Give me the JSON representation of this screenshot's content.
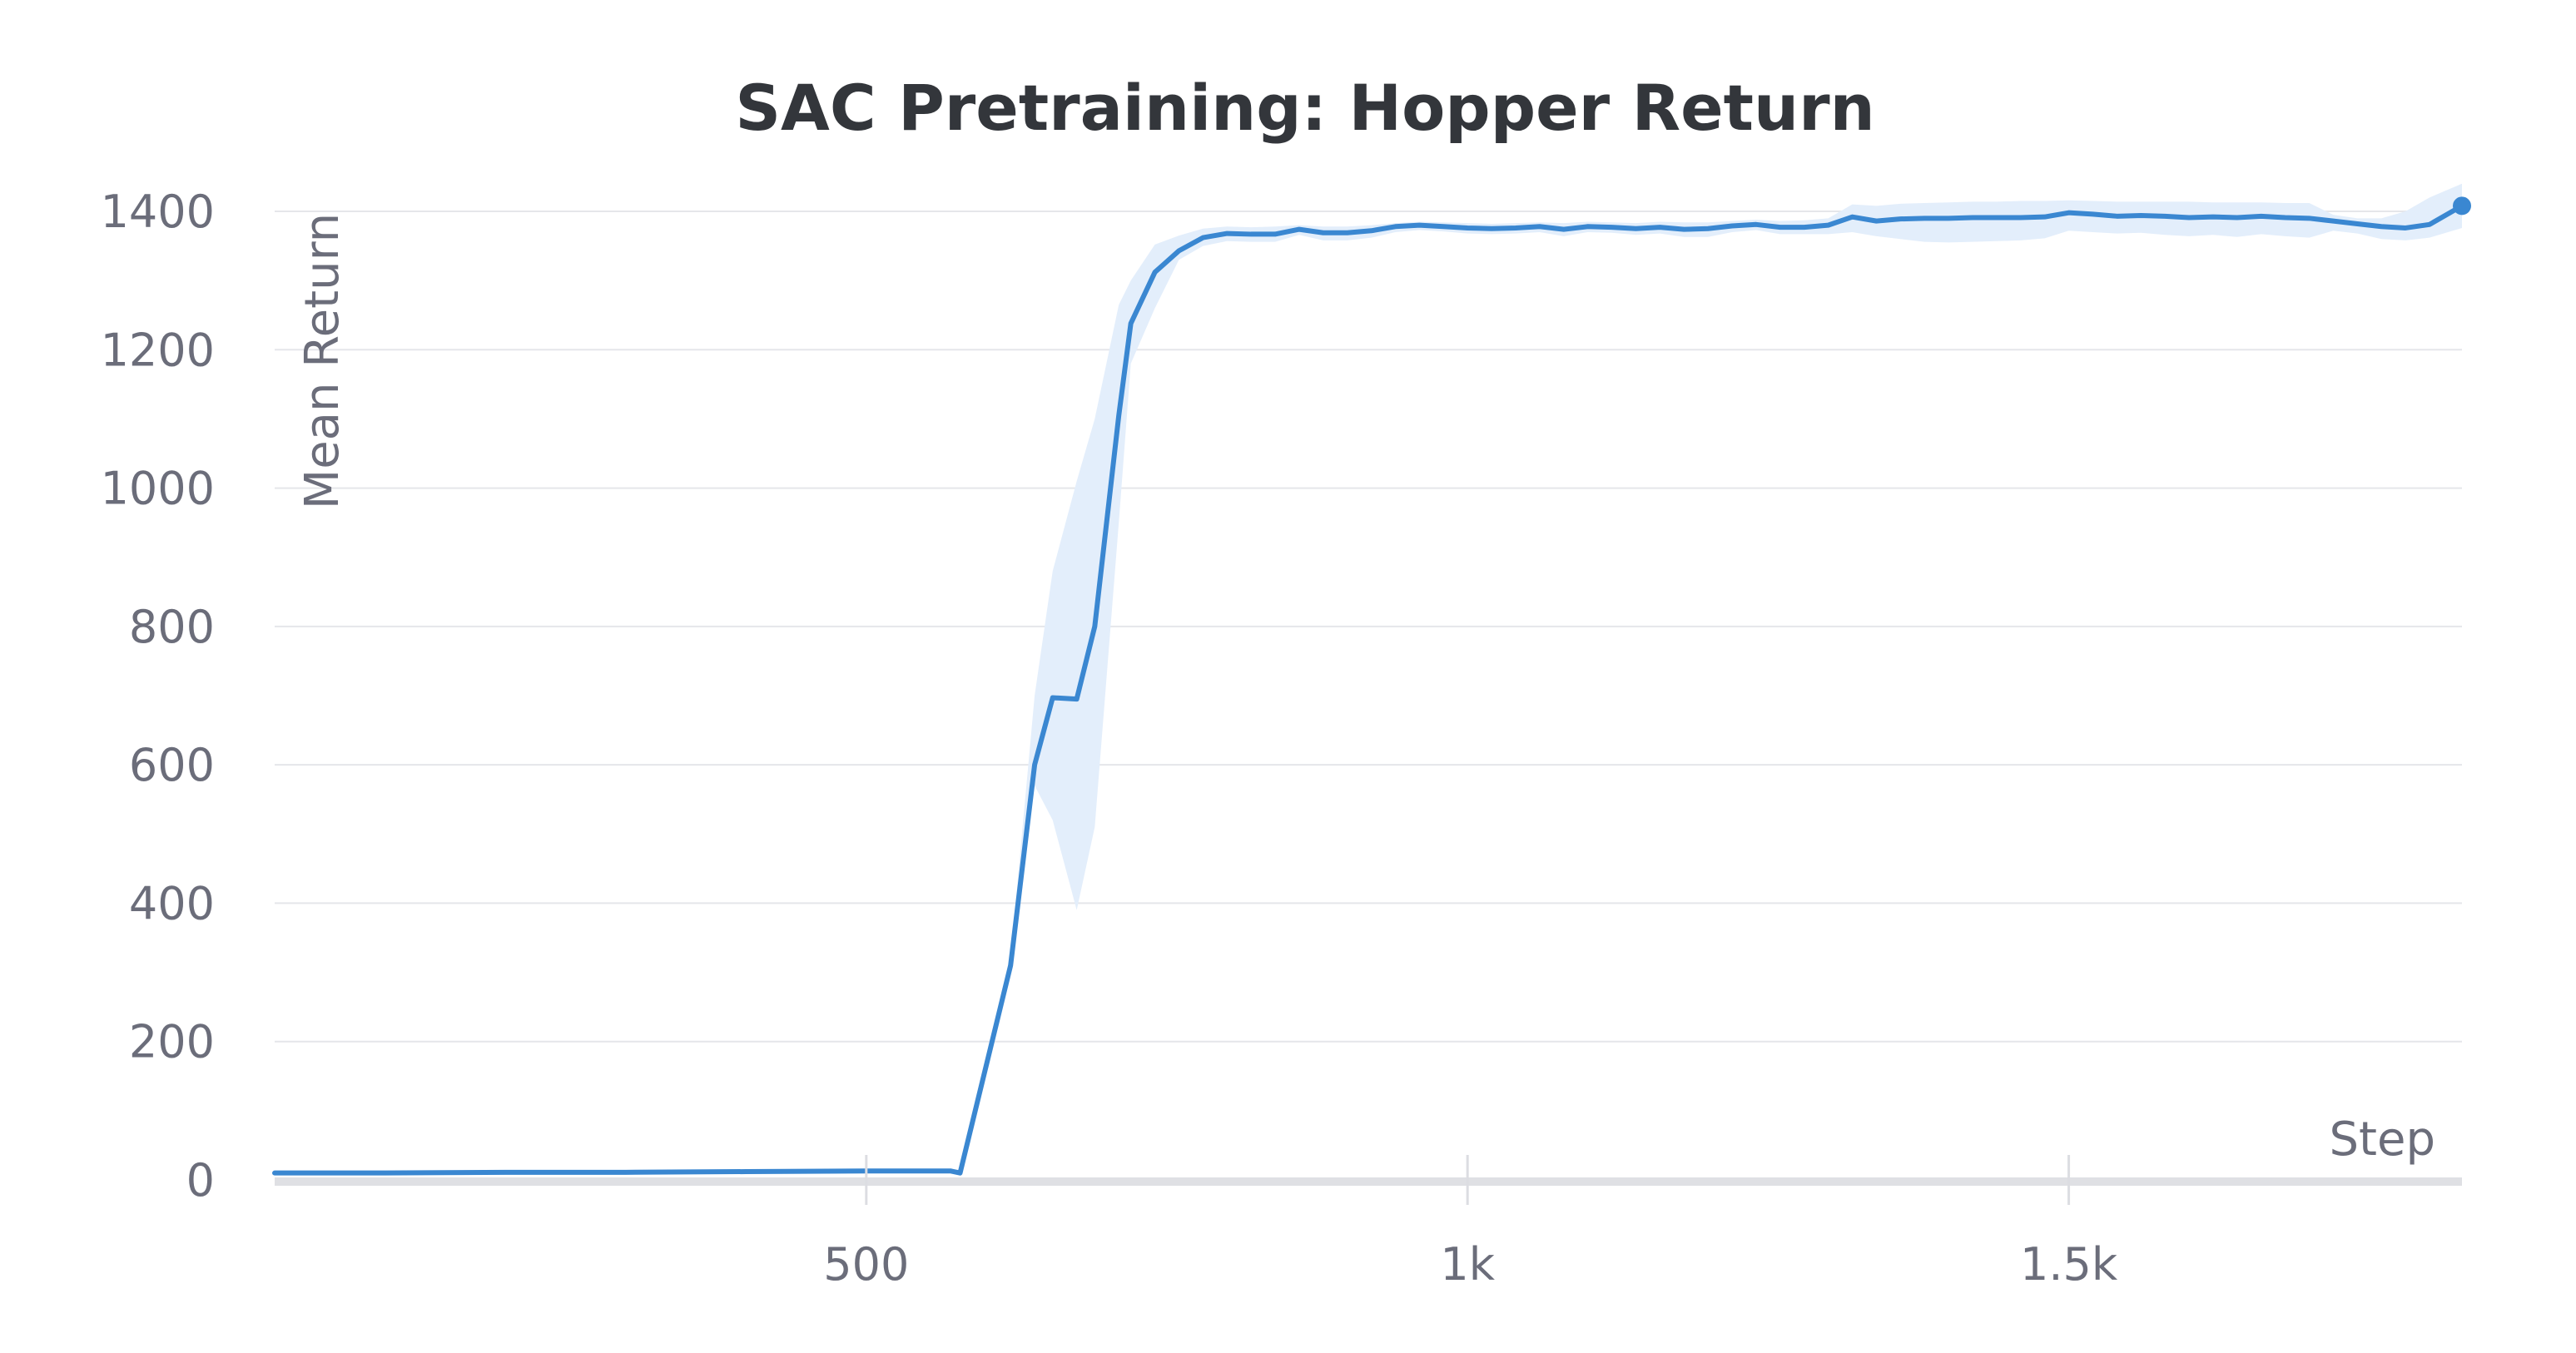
{
  "chart_data": {
    "type": "line",
    "title": "SAC Pretraining: Hopper Return",
    "xlabel": "Step",
    "ylabel": "Mean Return",
    "xlim": [
      8,
      1827
    ],
    "ylim": [
      0,
      1400
    ],
    "x_ticks": [
      {
        "value": 500,
        "label": "500"
      },
      {
        "value": 1000,
        "label": "1k"
      },
      {
        "value": 1500,
        "label": "1.5k"
      }
    ],
    "y_ticks": [
      {
        "value": 0,
        "label": "0"
      },
      {
        "value": 200,
        "label": "200"
      },
      {
        "value": 400,
        "label": "400"
      },
      {
        "value": 600,
        "label": "600"
      },
      {
        "value": 800,
        "label": "800"
      },
      {
        "value": 1000,
        "label": "1000"
      },
      {
        "value": 1200,
        "label": "1200"
      },
      {
        "value": 1400,
        "label": "1400"
      }
    ],
    "grid": true,
    "line_color": "#3a87d1",
    "band_color": "#e3eefb",
    "series": [
      {
        "x": [
          8,
          100,
          200,
          300,
          400,
          500,
          520,
          560,
          570,
          578,
          620,
          640,
          655,
          675,
          690,
          710,
          720,
          740,
          760,
          780,
          800,
          820,
          840,
          860,
          880,
          900,
          920,
          940,
          960,
          980,
          1000,
          1020,
          1040,
          1060,
          1080,
          1100,
          1120,
          1140,
          1160,
          1180,
          1200,
          1220,
          1240,
          1260,
          1280,
          1300,
          1320,
          1340,
          1360,
          1380,
          1400,
          1420,
          1440,
          1460,
          1480,
          1500,
          1520,
          1540,
          1560,
          1580,
          1600,
          1620,
          1640,
          1660,
          1680,
          1700,
          1720,
          1740,
          1760,
          1780,
          1800,
          1827
        ],
        "y": [
          10,
          10,
          11,
          11,
          12,
          13,
          13,
          13,
          13,
          10,
          310,
          600,
          697,
          695,
          800,
          1105,
          1238,
          1312,
          1343,
          1362,
          1368,
          1367,
          1367,
          1374,
          1369,
          1369,
          1372,
          1378,
          1380,
          1378,
          1376,
          1375,
          1376,
          1378,
          1374,
          1378,
          1377,
          1375,
          1377,
          1374,
          1375,
          1379,
          1381,
          1377,
          1377,
          1380,
          1392,
          1386,
          1389,
          1390,
          1390,
          1391,
          1391,
          1391,
          1392,
          1398,
          1396,
          1393,
          1394,
          1393,
          1391,
          1392,
          1391,
          1393,
          1391,
          1390,
          1386,
          1382,
          1378,
          1376,
          1381,
          1408
        ],
        "band_upper": [
          12,
          12,
          13,
          13,
          14,
          15,
          15,
          15,
          15,
          12,
          320,
          700,
          880,
          1010,
          1100,
          1265,
          1300,
          1352,
          1365,
          1375,
          1378,
          1377,
          1378,
          1380,
          1378,
          1378,
          1380,
          1383,
          1385,
          1384,
          1383,
          1382,
          1383,
          1384,
          1383,
          1385,
          1384,
          1383,
          1385,
          1384,
          1384,
          1386,
          1388,
          1386,
          1387,
          1390,
          1410,
          1408,
          1411,
          1412,
          1413,
          1414,
          1414,
          1415,
          1415,
          1416,
          1415,
          1414,
          1414,
          1414,
          1414,
          1413,
          1413,
          1413,
          1412,
          1412,
          1395,
          1390,
          1390,
          1400,
          1420,
          1440
        ],
        "band_lower": [
          8,
          8,
          9,
          9,
          10,
          11,
          11,
          11,
          11,
          8,
          300,
          570,
          520,
          390,
          510,
          950,
          1180,
          1260,
          1330,
          1350,
          1357,
          1356,
          1356,
          1366,
          1358,
          1358,
          1362,
          1370,
          1373,
          1371,
          1368,
          1367,
          1368,
          1370,
          1364,
          1370,
          1369,
          1366,
          1368,
          1363,
          1363,
          1370,
          1373,
          1367,
          1367,
          1367,
          1370,
          1364,
          1360,
          1356,
          1355,
          1356,
          1357,
          1358,
          1361,
          1372,
          1370,
          1368,
          1369,
          1366,
          1364,
          1366,
          1363,
          1367,
          1364,
          1362,
          1372,
          1368,
          1360,
          1358,
          1362,
          1376
        ]
      }
    ]
  }
}
